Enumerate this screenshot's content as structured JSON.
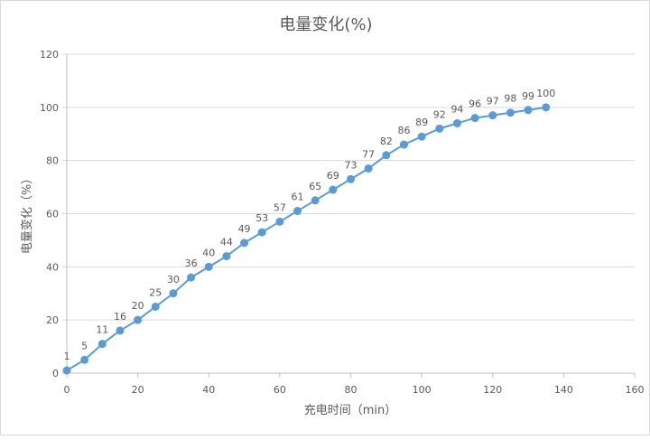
{
  "chart_data": {
    "type": "line",
    "title": "电量变化(%)",
    "xlabel": "充电时间（min）",
    "ylabel": "电量变化（%）",
    "xlim": [
      0,
      160
    ],
    "ylim": [
      0,
      120
    ],
    "xticks": [
      0,
      20,
      40,
      60,
      80,
      100,
      120,
      140,
      160
    ],
    "yticks": [
      0,
      20,
      40,
      60,
      80,
      100,
      120
    ],
    "grid": "horizontal",
    "legend": "none",
    "series": [
      {
        "name": "电量变化(%)",
        "color": "#5b9bd5",
        "x": [
          0,
          5,
          10,
          15,
          20,
          25,
          30,
          35,
          40,
          45,
          50,
          55,
          60,
          65,
          70,
          75,
          80,
          85,
          90,
          95,
          100,
          105,
          110,
          115,
          120,
          125,
          130,
          135
        ],
        "values": [
          1,
          5,
          11,
          16,
          20,
          25,
          30,
          36,
          40,
          44,
          49,
          53,
          57,
          61,
          65,
          69,
          73,
          77,
          82,
          86,
          89,
          92,
          94,
          96,
          97,
          98,
          99,
          100
        ],
        "data_labels": true
      }
    ]
  }
}
